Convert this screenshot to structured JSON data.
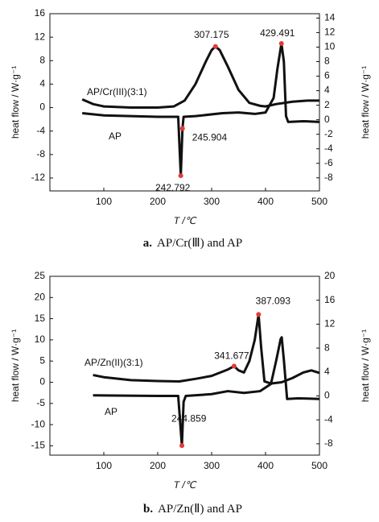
{
  "chart_data": [
    {
      "type": "line",
      "caption_label": "a.",
      "caption": "AP/Cr(Ⅲ) and AP",
      "xlabel": "T /℃",
      "ylabel": "heat flow / W·g⁻¹",
      "y2label": "heat flow / W·g⁻¹",
      "xlim": [
        0,
        500
      ],
      "xticks": [
        100,
        200,
        300,
        400,
        500
      ],
      "ylim": [
        -14.2,
        16
      ],
      "yticks": [
        16,
        12,
        8,
        4,
        0,
        -4,
        -8,
        -12
      ],
      "y2lim": [
        -9.8,
        14.6
      ],
      "y2ticks": [
        14,
        12,
        10,
        8,
        6,
        4,
        2,
        0,
        -2,
        -4,
        -6,
        -8
      ],
      "grid": false,
      "peak_color": "#e53935",
      "series": [
        {
          "name": "AP/Cr(III)(3:1)",
          "color": "#111111",
          "axis": "y",
          "x": [
            60,
            80,
            100,
            150,
            200,
            230,
            250,
            270,
            290,
            300,
            307.175,
            315,
            330,
            350,
            370,
            390,
            400,
            420,
            450,
            480,
            500
          ],
          "values": [
            1.4,
            0.6,
            0.2,
            0,
            0,
            0.2,
            1.2,
            4,
            8,
            9.8,
            10.4,
            9.8,
            7,
            3,
            0.8,
            0.3,
            0.2,
            0.6,
            1.0,
            1.2,
            1.2
          ],
          "peaks": [
            307.175
          ]
        },
        {
          "name": "AP",
          "color": "#111111",
          "axis": "y2",
          "x": [
            60,
            100,
            200,
            238,
            242.792,
            245.904,
            248,
            270,
            320,
            350,
            380,
            400,
            415,
            422,
            429.491,
            434,
            438,
            442,
            470,
            500
          ],
          "values": [
            0.9,
            0.6,
            0.4,
            0.4,
            -7.7,
            -1.2,
            0.4,
            0.5,
            0.9,
            1.0,
            0.8,
            1.0,
            3,
            7,
            10.5,
            8,
            0.5,
            -0.3,
            -0.2,
            -0.3
          ],
          "peaks": [
            242.792,
            245.904,
            429.491
          ]
        }
      ]
    },
    {
      "type": "line",
      "caption_label": "b.",
      "caption": "AP/Zn(Ⅱ) and AP",
      "xlabel": "T /℃",
      "ylabel": "heat flow / W·g⁻¹",
      "y2label": "heat flow / W·g⁻¹",
      "xlim": [
        0,
        500
      ],
      "xticks": [
        100,
        200,
        300,
        400,
        500
      ],
      "ylim": [
        -17.2,
        25
      ],
      "yticks": [
        25,
        20,
        15,
        10,
        5,
        0,
        -5,
        -10,
        -15
      ],
      "y2lim": [
        -9.9,
        20
      ],
      "y2ticks": [
        20,
        16,
        12,
        8,
        4,
        0,
        -4,
        -8
      ],
      "grid": false,
      "peak_color": "#e53935",
      "series": [
        {
          "name": "AP/Zn(II)(3:1)",
          "color": "#111111",
          "axis": "y",
          "x": [
            80,
            100,
            150,
            200,
            240,
            270,
            300,
            330,
            341.677,
            350,
            360,
            370,
            380,
            387.093,
            392,
            398,
            410,
            430,
            450,
            470,
            485,
            500
          ],
          "values": [
            1.7,
            1.2,
            0.5,
            0.3,
            0.2,
            0.8,
            1.5,
            3,
            3.8,
            2.8,
            2.3,
            5,
            10,
            16,
            8,
            0.2,
            -0.3,
            0,
            1,
            2.3,
            2.8,
            2.2
          ],
          "peaks": [
            341.677,
            387.093
          ]
        },
        {
          "name": "AP",
          "color": "#111111",
          "axis": "y2",
          "x": [
            80,
            200,
            238,
            244.859,
            248,
            252,
            300,
            330,
            360,
            390,
            410,
            420,
            428,
            430,
            434,
            440,
            460,
            500
          ],
          "values": [
            0.1,
            0,
            0,
            -8.3,
            -1,
            0,
            0.3,
            0.8,
            0.5,
            0.8,
            2,
            6,
            9.5,
            9.8,
            6,
            -0.5,
            -0.4,
            -0.5
          ],
          "peaks": [
            244.859
          ]
        }
      ]
    }
  ]
}
